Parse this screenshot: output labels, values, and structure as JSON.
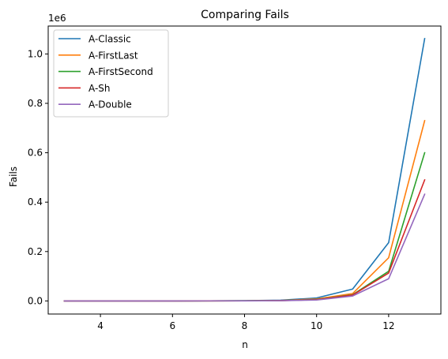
{
  "chart_data": {
    "type": "line",
    "title": "Comparing Fails",
    "xlabel": "n",
    "ylabel": "Fails",
    "y_scale_label": "1e6",
    "x_ticks": [
      4,
      6,
      8,
      10,
      12
    ],
    "y_ticks": [
      0.0,
      0.2,
      0.4,
      0.6,
      0.8,
      1.0
    ],
    "y_tick_labels": [
      "0.0",
      "0.2",
      "0.4",
      "0.6",
      "0.8",
      "1.0"
    ],
    "xlim": [
      2.55,
      13.45
    ],
    "ylim": [
      -0.053,
      1.113
    ],
    "grid": false,
    "legend_position": "upper-left",
    "x": [
      3,
      4,
      5,
      6,
      7,
      8,
      9,
      10,
      11,
      12,
      13
    ],
    "series": [
      {
        "name": "A-Classic",
        "color": "#1f77b4",
        "values": [
          0.0,
          0.0,
          0.0,
          0.0,
          0.0005,
          0.001,
          0.003,
          0.012,
          0.048,
          0.236,
          1.062
        ]
      },
      {
        "name": "A-FirstLast",
        "color": "#ff7f0e",
        "values": [
          0.0,
          0.0,
          0.0,
          0.0,
          0.0003,
          0.0008,
          0.002,
          0.008,
          0.03,
          0.175,
          0.73
        ]
      },
      {
        "name": "A-FirstSecond",
        "color": "#2ca02c",
        "values": [
          0.0,
          0.0,
          0.0,
          0.0,
          0.0002,
          0.0006,
          0.0015,
          0.006,
          0.025,
          0.12,
          0.6
        ]
      },
      {
        "name": "A-Sh",
        "color": "#d62728",
        "values": [
          0.0,
          0.0,
          0.0,
          0.0,
          0.0002,
          0.0005,
          0.0012,
          0.005,
          0.024,
          0.113,
          0.49
        ]
      },
      {
        "name": "A-Double",
        "color": "#9467bd",
        "values": [
          0.0,
          0.0,
          0.0,
          0.0,
          0.0001,
          0.0004,
          0.001,
          0.004,
          0.02,
          0.09,
          0.432
        ]
      }
    ]
  }
}
